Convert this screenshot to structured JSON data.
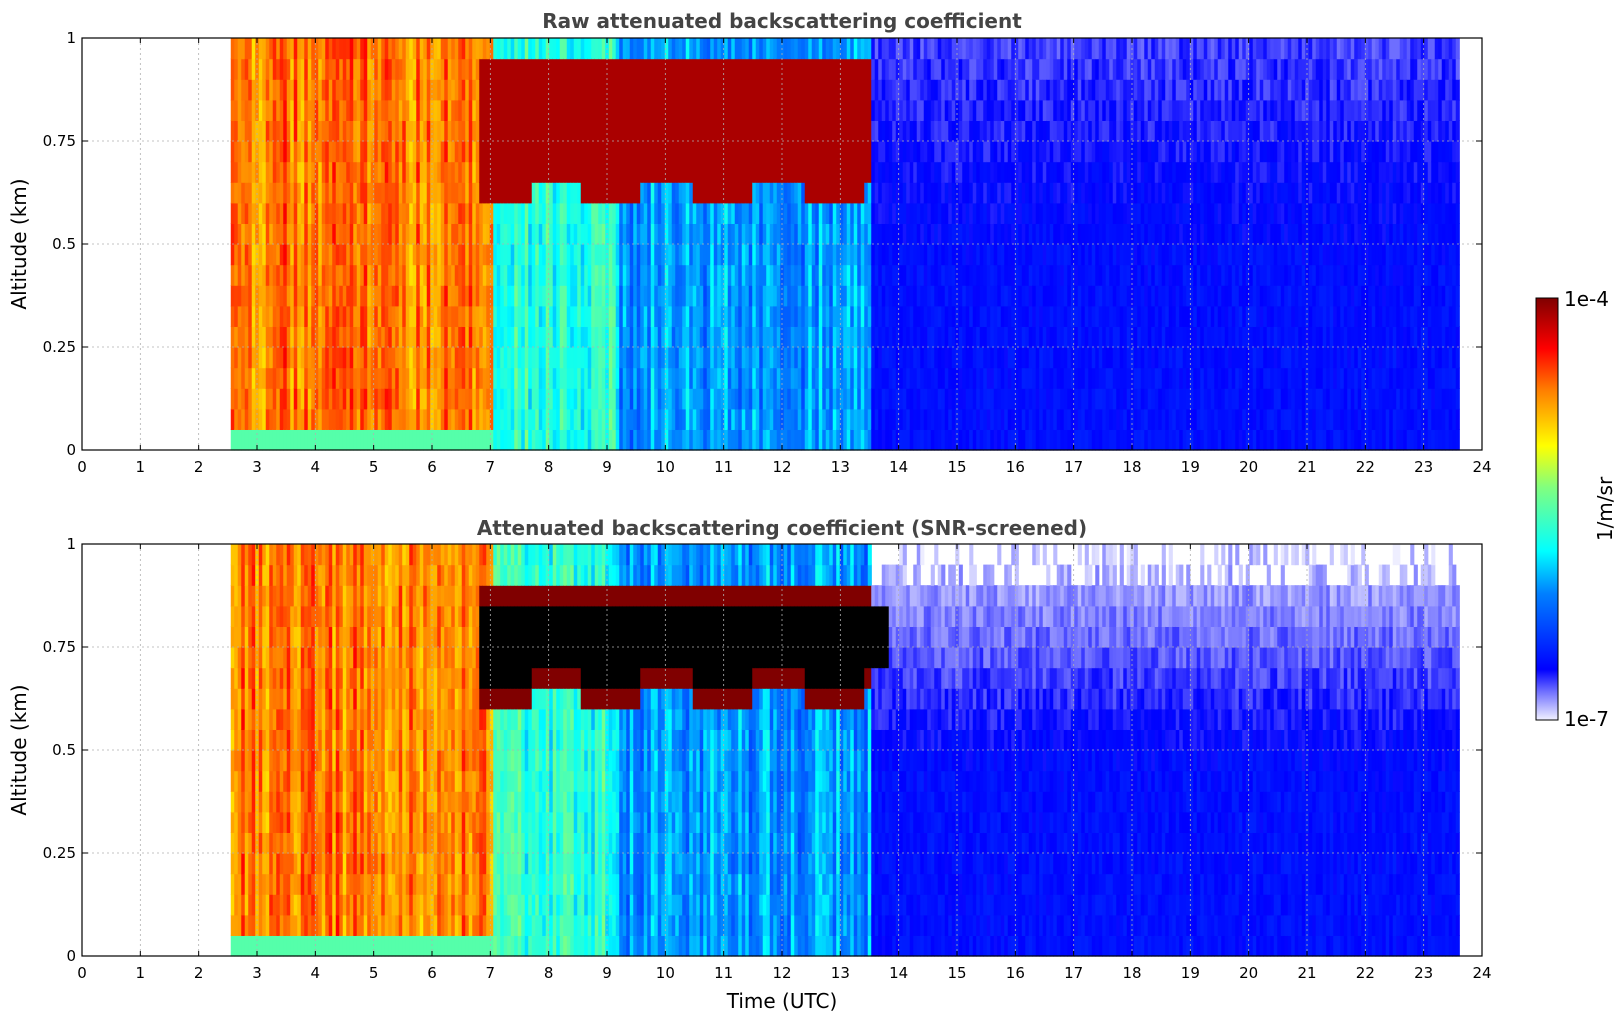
{
  "chart_data": [
    {
      "type": "heatmap",
      "title": "Raw attenuated backscattering coefficient",
      "ylabel": "Altitude (km)",
      "xlabel": "",
      "xlim": [
        0,
        24
      ],
      "ylim": [
        0,
        1
      ],
      "x_ticks": [
        "0",
        "1",
        "2",
        "3",
        "4",
        "5",
        "6",
        "7",
        "8",
        "9",
        "10",
        "11",
        "12",
        "13",
        "14",
        "15",
        "16",
        "17",
        "18",
        "19",
        "20",
        "21",
        "22",
        "23",
        "24"
      ],
      "y_ticks": [
        "0",
        "0.25",
        "0.5",
        "0.75",
        "1"
      ],
      "grid": true,
      "data_start_utc": 2.55,
      "data_end_utc": 23.6,
      "segments": [
        {
          "from": 2.55,
          "to": 7.0,
          "value_level": 0.78
        },
        {
          "from": 7.0,
          "to": 9.2,
          "value_level": 0.45
        },
        {
          "from": 9.2,
          "to": 13.5,
          "value_level": 0.32
        },
        {
          "from": 13.5,
          "to": 23.6,
          "value_level": 0.14
        }
      ],
      "cloud_layer": {
        "from": 6.8,
        "to": 13.8,
        "base_km": 0.62,
        "top_km": 0.95,
        "value_level": 0.96
      },
      "screened": false
    },
    {
      "type": "heatmap",
      "title": "Attenuated backscattering coefficient (SNR-screened)",
      "ylabel": "Altitude (km)",
      "xlabel": "Time (UTC)",
      "xlim": [
        0,
        24
      ],
      "ylim": [
        0,
        1
      ],
      "x_ticks": [
        "0",
        "1",
        "2",
        "3",
        "4",
        "5",
        "6",
        "7",
        "8",
        "9",
        "10",
        "11",
        "12",
        "13",
        "14",
        "15",
        "16",
        "17",
        "18",
        "19",
        "20",
        "21",
        "22",
        "23",
        "24"
      ],
      "y_ticks": [
        "0",
        "0.25",
        "0.5",
        "0.75",
        "1"
      ],
      "grid": true,
      "data_start_utc": 2.55,
      "data_end_utc": 23.6,
      "segments": [
        {
          "from": 2.55,
          "to": 7.0,
          "value_level": 0.78
        },
        {
          "from": 7.0,
          "to": 9.2,
          "value_level": 0.45
        },
        {
          "from": 9.2,
          "to": 13.5,
          "value_level": 0.32
        },
        {
          "from": 13.5,
          "to": 23.6,
          "value_level": 0.14
        }
      ],
      "cloud_layer": {
        "from": 6.8,
        "to": 13.8,
        "base_km": 0.62,
        "top_km": 0.9,
        "value_level": 1.0
      },
      "screened": true
    }
  ],
  "colorbar": {
    "min_label": "1e-7",
    "max_label": "1e-4",
    "unit_label": "1/m/sr",
    "colormap": "jet"
  }
}
